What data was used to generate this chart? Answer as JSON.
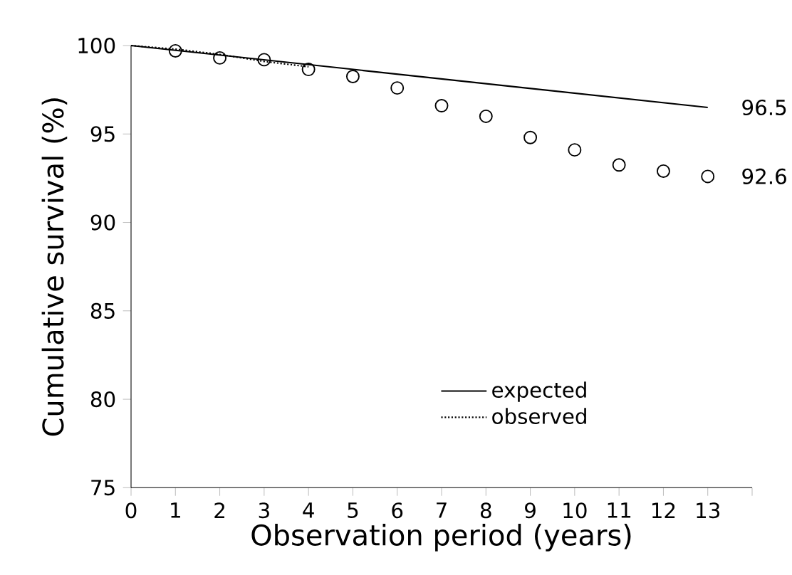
{
  "chart_data": {
    "type": "line",
    "xlabel": "Observation period (years)",
    "ylabel": "Cumulative survival (%)",
    "xlim": [
      0,
      14
    ],
    "xticks": [
      0,
      1,
      2,
      3,
      4,
      5,
      6,
      7,
      8,
      9,
      10,
      11,
      12,
      13,
      {
        "value": 14,
        "label": null
      }
    ],
    "ylim": [
      75,
      100
    ],
    "yticks": [
      75,
      80,
      85,
      90,
      95,
      100
    ],
    "series": [
      {
        "name": "expected",
        "color": "#000000",
        "x": [
          0,
          13
        ],
        "values": [
          100,
          96.5
        ],
        "line_style": "solid",
        "marker": "none"
      },
      {
        "name": "observed",
        "color": "#000000",
        "x": [
          0,
          1,
          2,
          3,
          4
        ],
        "values": [
          100,
          99.8,
          99.5,
          99.1,
          98.8
        ],
        "line_style": "dotted",
        "marker": "none"
      },
      {
        "type": "scatter",
        "color": "#000000",
        "x": [
          1,
          2,
          3,
          4,
          5,
          6,
          7,
          8,
          9,
          10,
          11,
          12,
          13
        ],
        "values": [
          99.7,
          99.3,
          99.2,
          98.65,
          98.25,
          97.6,
          96.6,
          96.0,
          94.8,
          94.1,
          93.25,
          92.9,
          92.6
        ],
        "marker": "circle"
      }
    ],
    "annotations": [
      {
        "text": "96.5",
        "x": 13,
        "y": 96.5
      },
      {
        "text": "92.6",
        "x": 13,
        "y": 92.6
      }
    ],
    "legend": "bottom",
    "grid": false
  }
}
